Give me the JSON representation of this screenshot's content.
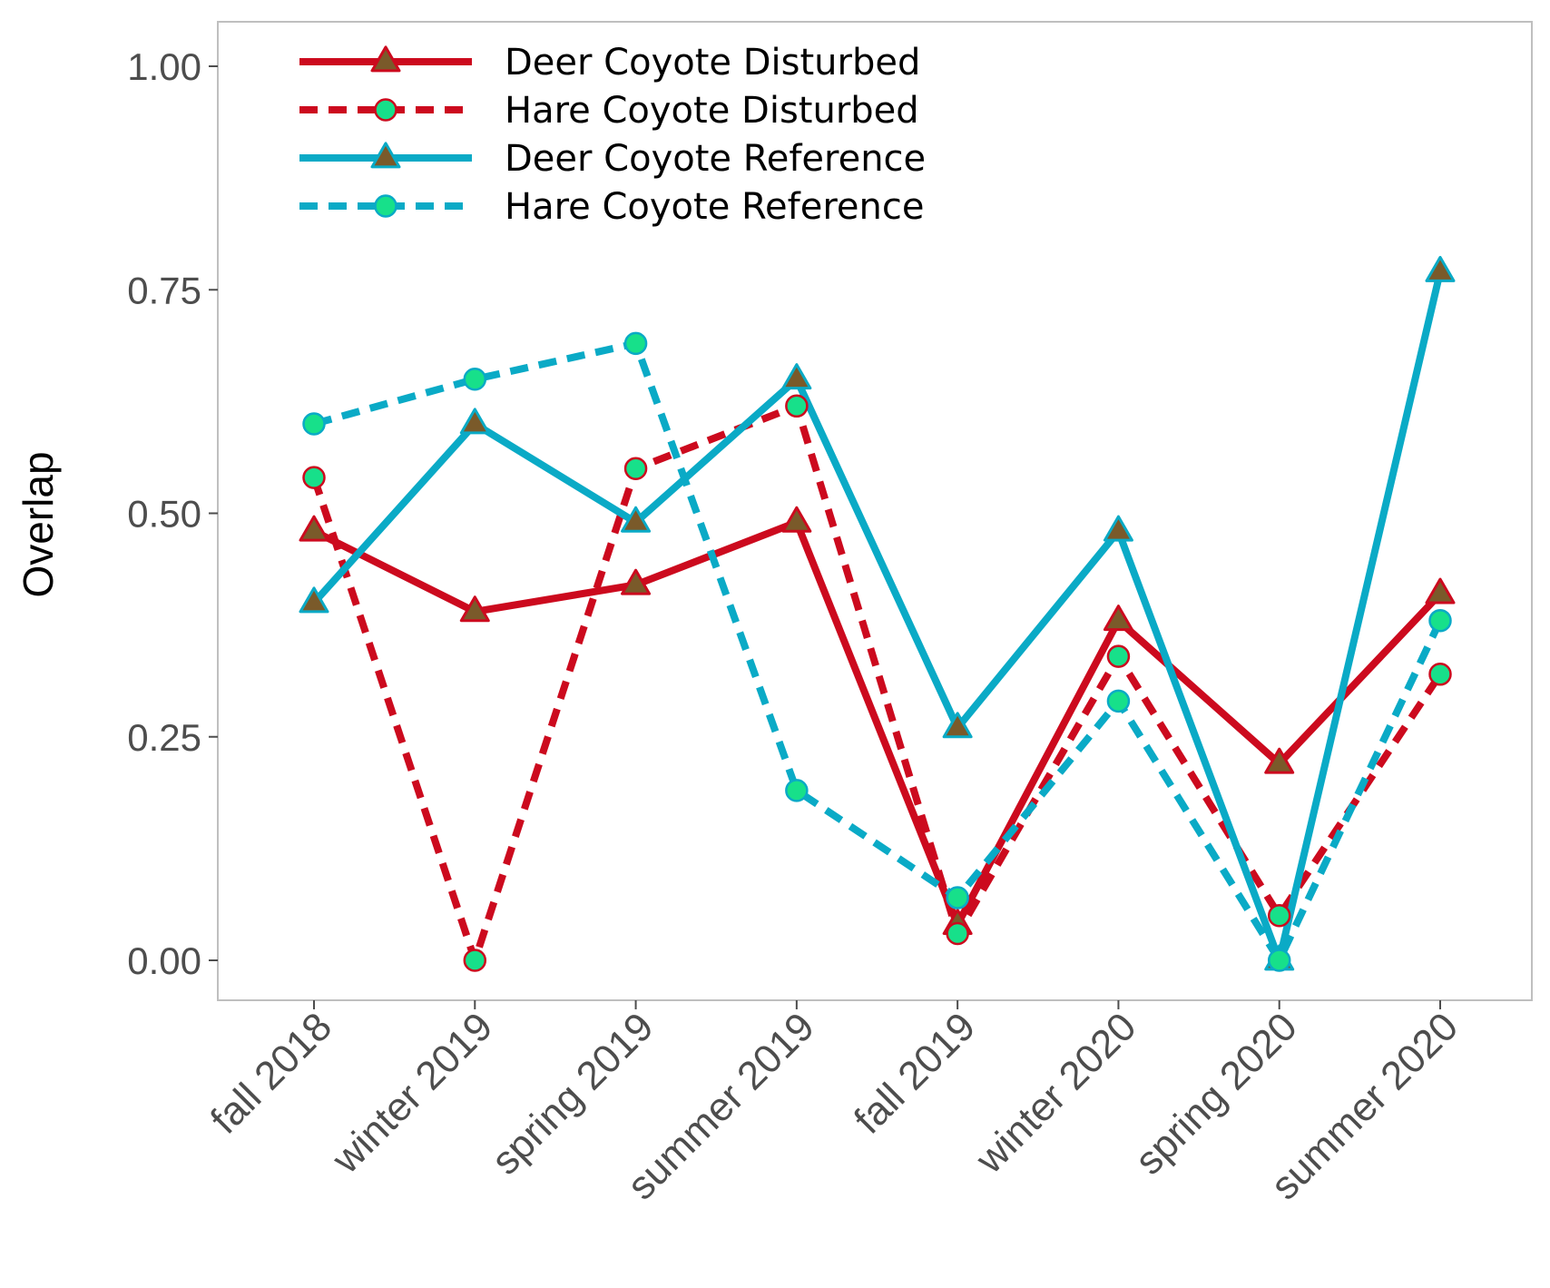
{
  "chart_data": {
    "type": "line",
    "title": "",
    "xlabel": "",
    "ylabel": "Overlap",
    "ylim": [
      -0.05,
      1.05
    ],
    "yticks": [
      "0.00",
      "0.25",
      "0.50",
      "0.75",
      "1.00"
    ],
    "ytick_values": [
      0,
      0.25,
      0.5,
      0.75,
      1.0
    ],
    "categories": [
      "fall 2018",
      "winter 2019",
      "spring 2019",
      "summer 2019",
      "fall 2019",
      "winter 2020",
      "spring 2020",
      "summer 2020"
    ],
    "grid": false,
    "legend_position": "top-left",
    "series": [
      {
        "name": "Deer Coyote Disturbed",
        "line_color": "#cc0a1e",
        "line_style": "solid",
        "marker": "triangle",
        "marker_fill": "#7a5a2a",
        "values": [
          0.48,
          0.39,
          0.42,
          0.49,
          0.04,
          0.38,
          0.22,
          0.41
        ]
      },
      {
        "name": "Hare Coyote Disturbed",
        "line_color": "#cc0a1e",
        "line_style": "dashed",
        "marker": "circle",
        "marker_fill": "#17e08a",
        "values": [
          0.54,
          0.0,
          0.55,
          0.62,
          0.03,
          0.34,
          0.05,
          0.32
        ]
      },
      {
        "name": "Deer Coyote Reference",
        "line_color": "#0aaac6",
        "line_style": "solid",
        "marker": "triangle",
        "marker_fill": "#7a5a2a",
        "values": [
          0.4,
          0.6,
          0.49,
          0.65,
          0.26,
          0.48,
          0.0,
          0.77
        ]
      },
      {
        "name": "Hare Coyote Reference",
        "line_color": "#0aaac6",
        "line_style": "dashed",
        "marker": "circle",
        "marker_fill": "#17e08a",
        "values": [
          0.6,
          0.65,
          0.69,
          0.19,
          0.07,
          0.29,
          0.0,
          0.38
        ]
      }
    ]
  },
  "colors": {
    "panel_border": "#bfbfbf",
    "tick_color": "#4d4d4d",
    "background": "#ffffff"
  }
}
